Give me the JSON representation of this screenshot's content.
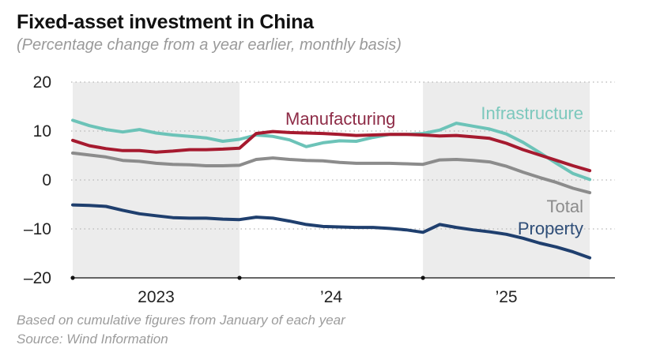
{
  "header": {
    "title": "Fixed-asset investment in China",
    "subtitle": "(Percentage change from a year earlier, monthly basis)"
  },
  "footer": {
    "note": "Based on cumulative figures from January of each year",
    "source": "Source: Wind Information"
  },
  "chart_data": {
    "type": "line",
    "title": "Fixed-asset investment in China",
    "subtitle": "(Percentage change from a year earlier, monthly basis)",
    "xlabel": "",
    "ylabel": "",
    "ylim": [
      -20,
      20
    ],
    "yticks": [
      20,
      10,
      0,
      -10,
      -20
    ],
    "ytick_labels": [
      "20",
      "10",
      "0",
      "–10",
      "–20"
    ],
    "grid": "horizontal dotted",
    "x": [
      "2023-02",
      "2023-03",
      "2023-04",
      "2023-05",
      "2023-06",
      "2023-07",
      "2023-08",
      "2023-09",
      "2023-10",
      "2023-11",
      "2023-12",
      "2024-02",
      "2024-03",
      "2024-04",
      "2024-05",
      "2024-06",
      "2024-07",
      "2024-08",
      "2024-09",
      "2024-10",
      "2024-11",
      "2024-12",
      "2025-02",
      "2025-03",
      "2025-04",
      "2025-05",
      "2025-06",
      "2025-07",
      "2025-08",
      "2025-09",
      "2025-10",
      "2025-11"
    ],
    "x_tick_labels": [
      {
        "label": "2023",
        "at_index_center": [
          0,
          10
        ]
      },
      {
        "label": "’24",
        "at_index_center": [
          10,
          21
        ]
      },
      {
        "label": "’25",
        "at_index_center": [
          21,
          31
        ]
      }
    ],
    "shaded_periods": [
      [
        "2023-02",
        "2023-12"
      ],
      [
        "2024-12",
        "2025-11"
      ]
    ],
    "series": [
      {
        "name": "Infrastructure",
        "color": "#6cc3b8",
        "label_color": "#7cc8bd",
        "values": [
          12.2,
          11.1,
          10.3,
          9.8,
          10.3,
          9.6,
          9.2,
          8.9,
          8.6,
          7.9,
          8.3,
          9.2,
          8.9,
          8.2,
          6.8,
          7.6,
          8.0,
          7.9,
          8.7,
          9.3,
          9.3,
          9.5,
          10.2,
          11.6,
          11.0,
          10.4,
          9.4,
          7.7,
          5.6,
          3.4,
          1.3,
          0.1
        ]
      },
      {
        "name": "Manufacturing",
        "color": "#a61a2f",
        "label_color": "#8e2c47",
        "values": [
          8.1,
          7.0,
          6.4,
          6.0,
          6.0,
          5.7,
          5.9,
          6.2,
          6.2,
          6.3,
          6.5,
          9.5,
          9.9,
          9.7,
          9.6,
          9.5,
          9.3,
          9.1,
          9.2,
          9.3,
          9.3,
          9.2,
          9.0,
          9.1,
          8.8,
          8.5,
          7.5,
          6.2,
          5.1,
          4.0,
          2.9,
          1.9
        ]
      },
      {
        "name": "Total",
        "color": "#8c8c8c",
        "label_color": "#8c8c8c",
        "values": [
          5.5,
          5.1,
          4.7,
          4.0,
          3.8,
          3.4,
          3.2,
          3.1,
          2.9,
          2.9,
          3.0,
          4.2,
          4.5,
          4.2,
          4.0,
          3.9,
          3.6,
          3.4,
          3.4,
          3.4,
          3.3,
          3.2,
          4.1,
          4.2,
          4.0,
          3.7,
          2.8,
          1.6,
          0.5,
          -0.5,
          -1.7,
          -2.6
        ]
      },
      {
        "name": "Property",
        "color": "#1f3f6e",
        "label_color": "#2f4e78",
        "values": [
          -5.1,
          -5.2,
          -5.4,
          -6.2,
          -6.9,
          -7.3,
          -7.7,
          -7.8,
          -7.8,
          -8.0,
          -8.1,
          -7.6,
          -7.8,
          -8.4,
          -9.1,
          -9.5,
          -9.6,
          -9.7,
          -9.7,
          -9.9,
          -10.2,
          -10.7,
          -9.1,
          -9.7,
          -10.2,
          -10.6,
          -11.1,
          -11.9,
          -12.9,
          -13.7,
          -14.7,
          -15.9
        ]
      }
    ],
    "legend": "direct labels on lines (Manufacturing top-center, Infrastructure top-right, Total and Property right)"
  }
}
